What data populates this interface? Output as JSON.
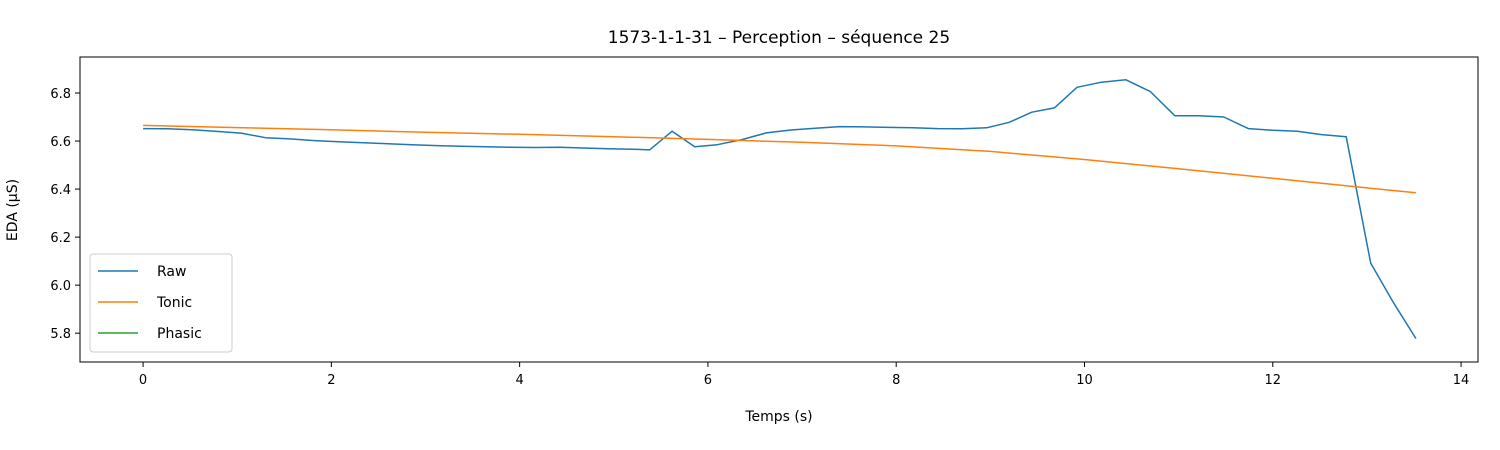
{
  "chart_data": {
    "type": "line",
    "title": "1573-1-1-31 – Perception – séquence 25",
    "xlabel": "Temps (s)",
    "ylabel": "EDA (µS)",
    "xlim": [
      -0.67,
      14.18
    ],
    "ylim": [
      5.68,
      6.95
    ],
    "xticks": [
      0,
      2,
      4,
      6,
      8,
      10,
      12,
      14
    ],
    "yticks": [
      5.8,
      6.0,
      6.2,
      6.4,
      6.6,
      6.8
    ],
    "xtick_labels": [
      "0",
      "2",
      "4",
      "6",
      "8",
      "10",
      "12",
      "14"
    ],
    "ytick_labels": [
      "5.8",
      "6.0",
      "6.2",
      "6.4",
      "6.6",
      "6.8"
    ],
    "legend_position": "lower-left",
    "grid": false,
    "series": [
      {
        "name": "Raw",
        "color": "#1f77b4",
        "x": [
          0.0,
          0.26,
          0.52,
          0.78,
          1.04,
          1.3,
          1.56,
          1.82,
          2.08,
          2.34,
          2.6,
          2.86,
          3.12,
          3.38,
          3.64,
          3.9,
          4.16,
          4.42,
          4.68,
          4.94,
          5.2,
          5.38,
          5.62,
          5.86,
          6.1,
          6.36,
          6.62,
          6.88,
          7.14,
          7.4,
          7.66,
          7.92,
          8.18,
          8.44,
          8.7,
          8.96,
          9.2,
          9.44,
          9.68,
          9.92,
          10.18,
          10.44,
          10.7,
          10.96,
          11.22,
          11.48,
          11.74,
          12.0,
          12.26,
          12.52,
          12.78,
          13.04,
          13.28,
          13.52
        ],
        "y": [
          6.652,
          6.651,
          6.647,
          6.64,
          6.633,
          6.614,
          6.609,
          6.602,
          6.597,
          6.593,
          6.589,
          6.585,
          6.581,
          6.578,
          6.576,
          6.574,
          6.573,
          6.574,
          6.571,
          6.568,
          6.566,
          6.563,
          6.641,
          6.576,
          6.585,
          6.606,
          6.634,
          6.646,
          6.653,
          6.66,
          6.659,
          6.657,
          6.655,
          6.652,
          6.651,
          6.655,
          6.678,
          6.72,
          6.738,
          6.824,
          6.845,
          6.855,
          6.806,
          6.705,
          6.705,
          6.7,
          6.652,
          6.645,
          6.641,
          6.627,
          6.618,
          6.092,
          5.928,
          5.778
        ]
      },
      {
        "name": "Tonic",
        "color": "#ff7f0e",
        "x": [
          0,
          1,
          2,
          3,
          4,
          5,
          6,
          7,
          8,
          9,
          10,
          11,
          12,
          13,
          13.52
        ],
        "y": [
          6.665,
          6.656,
          6.647,
          6.637,
          6.628,
          6.618,
          6.607,
          6.595,
          6.58,
          6.557,
          6.523,
          6.485,
          6.445,
          6.405,
          6.385
        ]
      },
      {
        "name": "Phasic",
        "color": "#2ca02c",
        "x": [],
        "y": []
      }
    ]
  }
}
